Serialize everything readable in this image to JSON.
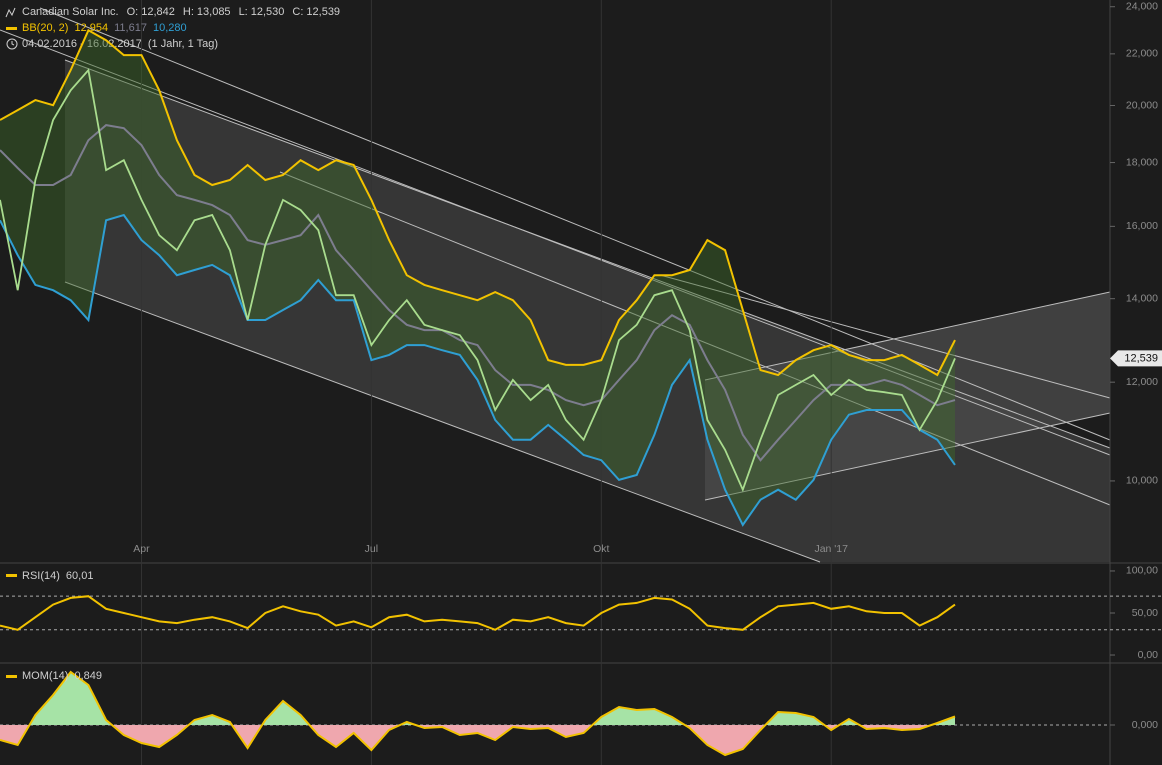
{
  "chart_data": [
    {
      "type": "line",
      "log_scale": true,
      "categories": [
        null,
        null,
        null,
        null,
        null,
        null,
        null,
        null,
        "Apr",
        null,
        null,
        null,
        null,
        null,
        null,
        null,
        null,
        null,
        null,
        null,
        null,
        "Jul",
        null,
        null,
        null,
        null,
        null,
        null,
        null,
        null,
        null,
        null,
        null,
        null,
        "Okt",
        null,
        null,
        null,
        null,
        null,
        null,
        null,
        null,
        null,
        null,
        null,
        null,
        "Jan '17",
        null,
        null,
        null,
        null,
        null,
        null,
        null
      ],
      "series": [
        {
          "name": "Canadian Solar Inc.",
          "color": "#a9dc8e",
          "values": [
            16.8,
            14.22,
            17.43,
            19.47,
            20.57,
            21.35,
            17.75,
            18.08,
            16.8,
            15.74,
            15.31,
            16.18,
            16.34,
            15.31,
            13.46,
            15.46,
            16.8,
            16.49,
            15.89,
            14.09,
            14.09,
            12.85,
            13.46,
            13.96,
            13.34,
            13.21,
            13.09,
            12.5,
            11.4,
            12.05,
            11.61,
            11.94,
            11.19,
            10.79,
            11.61,
            12.97,
            13.34,
            14.09,
            14.22,
            13.21,
            11.19,
            10.59,
            9.84,
            10.79,
            11.72,
            11.94,
            12.16,
            11.72,
            12.05,
            11.83,
            11.78,
            11.72,
            10.99,
            11.61,
            12.539
          ]
        }
      ],
      "ohlc_header": [
        {
          "key": "O:",
          "value": 12.842,
          "label": "12,842"
        },
        {
          "key": "H:",
          "value": 13.085,
          "label": "13,085"
        },
        {
          "key": "L:",
          "value": 12.53,
          "label": "12,530"
        },
        {
          "key": "C:",
          "value": 12.539,
          "label": "12,539"
        }
      ],
      "bollinger": {
        "name": "BB(20, 2)",
        "upper": {
          "color": "#f2c200",
          "values": [
            19.47,
            19.83,
            20.2,
            20.01,
            21.35,
            22.98,
            22.56,
            21.95,
            21.95,
            20.57,
            18.76,
            17.59,
            17.27,
            17.43,
            17.92,
            17.43,
            17.59,
            18.08,
            17.75,
            18.08,
            17.92,
            16.8,
            15.6,
            14.62,
            14.36,
            14.22,
            14.09,
            13.96,
            14.17,
            13.96,
            13.46,
            12.5,
            12.39,
            12.39,
            12.5,
            13.46,
            13.96,
            14.62,
            14.62,
            14.76,
            15.6,
            15.31,
            13.71,
            12.27,
            12.16,
            12.5,
            12.73,
            12.85,
            12.62,
            12.5,
            12.5,
            12.62,
            12.39,
            12.16,
            12.97
          ]
        },
        "middle": {
          "color": "#7d7d8e",
          "values": [
            18.42,
            17.82,
            17.27,
            17.27,
            17.59,
            18.76,
            19.29,
            19.18,
            18.59,
            17.59,
            16.95,
            16.8,
            16.64,
            16.34,
            15.6,
            15.46,
            15.6,
            15.74,
            16.34,
            15.31,
            14.76,
            14.22,
            13.71,
            13.34,
            13.21,
            13.21,
            12.97,
            12.85,
            12.27,
            11.94,
            11.94,
            11.83,
            11.61,
            11.5,
            11.61,
            12.05,
            12.5,
            13.21,
            13.58,
            13.34,
            12.5,
            11.83,
            10.89,
            10.39,
            10.79,
            11.19,
            11.61,
            11.94,
            11.94,
            11.94,
            12.05,
            11.94,
            11.72,
            11.5,
            11.61
          ]
        },
        "lower": {
          "color": "#2f9fd3",
          "values": [
            16.18,
            15.17,
            14.36,
            14.22,
            13.96,
            13.46,
            16.18,
            16.34,
            15.6,
            15.17,
            14.62,
            14.76,
            14.9,
            14.62,
            13.46,
            13.46,
            13.71,
            13.96,
            14.49,
            13.96,
            13.96,
            12.5,
            12.62,
            12.85,
            12.85,
            12.73,
            12.62,
            12.05,
            11.19,
            10.79,
            10.79,
            11.09,
            10.79,
            10.49,
            10.39,
            10.02,
            10.11,
            10.89,
            11.94,
            12.5,
            10.79,
            9.84,
            9.22,
            9.66,
            9.84,
            9.66,
            10.02,
            10.79,
            11.3,
            11.4,
            11.4,
            11.4,
            10.99,
            10.79,
            10.3
          ]
        },
        "legend_values": [
          {
            "value": 12.954,
            "label": "12,954"
          },
          {
            "value": 11.617,
            "label": "11,617"
          },
          {
            "value": 10.28,
            "label": "10,280"
          }
        ]
      },
      "period": "04.02.2016 - 16.02.2017",
      "period_note": "(1 Jahr, 1 Tag)",
      "last_price": {
        "value": 12.539,
        "label": "12,539"
      },
      "ylim": [
        8.61,
        24.3
      ],
      "yticks": [
        {
          "value": 10,
          "label": "10,000"
        },
        {
          "value": 12,
          "label": "12,000"
        },
        {
          "value": 14,
          "label": "14,000"
        },
        {
          "value": 16,
          "label": "16,000"
        },
        {
          "value": 18,
          "label": "18,000"
        },
        {
          "value": 20,
          "label": "20,000"
        },
        {
          "value": 22,
          "label": "22,000"
        },
        {
          "value": 24,
          "label": "24,000"
        }
      ],
      "grid": true
    },
    {
      "type": "line",
      "series": [
        {
          "name": "RSI(14)",
          "color": "#f2c200",
          "values": [
            35,
            30,
            45,
            60,
            68,
            70,
            55,
            50,
            45,
            40,
            38,
            42,
            45,
            40,
            32,
            50,
            58,
            52,
            48,
            35,
            40,
            33,
            45,
            48,
            40,
            42,
            40,
            38,
            30,
            42,
            40,
            45,
            38,
            35,
            50,
            60,
            62,
            68,
            66,
            55,
            35,
            32,
            30,
            45,
            58,
            60,
            62,
            55,
            58,
            52,
            50,
            50,
            35,
            45,
            60.01
          ]
        }
      ],
      "value_label": {
        "value": 60.01,
        "label": "60,01"
      },
      "reference_lines": [
        30,
        70
      ],
      "ylim": [
        -8.3,
        107.1
      ],
      "yticks": [
        {
          "value": 0,
          "label": "0,00"
        },
        {
          "value": 50,
          "label": "50,00"
        },
        {
          "value": 100,
          "label": "100,00"
        }
      ]
    },
    {
      "type": "area",
      "series": [
        {
          "name": "MOM(14)",
          "color": "#f2c200",
          "values": [
            -1.5,
            -2,
            1,
            3,
            5.3,
            4,
            0.5,
            -1,
            -1.8,
            -2.2,
            -1,
            0.5,
            1,
            0.3,
            -2.3,
            0.5,
            2.4,
            1,
            -1,
            -2.2,
            -0.8,
            -2.5,
            -0.5,
            0.3,
            -0.3,
            -0.2,
            -1,
            -0.8,
            -1.5,
            -0.2,
            -0.4,
            -0.3,
            -1.2,
            -0.8,
            0.8,
            1.8,
            1.5,
            1.6,
            0.8,
            -0.3,
            -2,
            -3,
            -2.4,
            -0.5,
            1.3,
            1.2,
            0.8,
            -0.5,
            0.6,
            -0.4,
            -0.3,
            -0.5,
            -0.4,
            0.2,
            0.849
          ]
        }
      ],
      "fill_positive": "#a6e3a6",
      "fill_negative": "#efa7ae",
      "value_label": {
        "value": 0.849,
        "label": "0,849"
      },
      "ylim": [
        -4,
        6
      ],
      "yticks": [
        {
          "value": 0,
          "label": "0,000"
        }
      ]
    }
  ]
}
